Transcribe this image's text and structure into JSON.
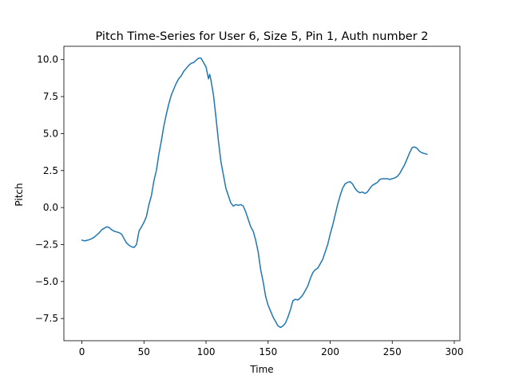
{
  "chart_data": {
    "type": "line",
    "title": "Pitch Time-Series for User 6, Size 5, Pin 1, Auth number 2",
    "xlabel": "Time",
    "ylabel": "Pitch",
    "xlim": [
      -14.5,
      304.5
    ],
    "ylim": [
      -9.0,
      10.9
    ],
    "grid": false,
    "x_ticks": [
      0,
      50,
      100,
      150,
      200,
      250,
      300
    ],
    "x_tick_labels": [
      "0",
      "50",
      "100",
      "150",
      "200",
      "250",
      "300"
    ],
    "y_ticks": [
      -7.5,
      -5.0,
      -2.5,
      0.0,
      2.5,
      5.0,
      7.5,
      10.0
    ],
    "y_tick_labels": [
      "−7.5",
      "−5.0",
      "−2.5",
      "0.0",
      "2.5",
      "5.0",
      "7.5",
      "10.0"
    ],
    "series": [
      {
        "color": "#1f77b4",
        "points": [
          [
            0,
            -2.2
          ],
          [
            2,
            -2.25
          ],
          [
            5,
            -2.2
          ],
          [
            8,
            -2.1
          ],
          [
            10,
            -2.0
          ],
          [
            12,
            -1.85
          ],
          [
            14,
            -1.7
          ],
          [
            16,
            -1.5
          ],
          [
            18,
            -1.4
          ],
          [
            20,
            -1.3
          ],
          [
            22,
            -1.35
          ],
          [
            24,
            -1.5
          ],
          [
            26,
            -1.6
          ],
          [
            28,
            -1.65
          ],
          [
            30,
            -1.7
          ],
          [
            32,
            -1.8
          ],
          [
            34,
            -2.1
          ],
          [
            36,
            -2.4
          ],
          [
            38,
            -2.55
          ],
          [
            40,
            -2.65
          ],
          [
            42,
            -2.7
          ],
          [
            44,
            -2.5
          ],
          [
            46,
            -1.6
          ],
          [
            48,
            -1.3
          ],
          [
            50,
            -1.0
          ],
          [
            52,
            -0.6
          ],
          [
            54,
            0.2
          ],
          [
            56,
            0.8
          ],
          [
            58,
            1.8
          ],
          [
            60,
            2.5
          ],
          [
            62,
            3.6
          ],
          [
            64,
            4.5
          ],
          [
            66,
            5.5
          ],
          [
            68,
            6.3
          ],
          [
            70,
            7.0
          ],
          [
            72,
            7.6
          ],
          [
            74,
            8.0
          ],
          [
            76,
            8.4
          ],
          [
            78,
            8.7
          ],
          [
            80,
            8.9
          ],
          [
            82,
            9.2
          ],
          [
            84,
            9.4
          ],
          [
            86,
            9.6
          ],
          [
            88,
            9.75
          ],
          [
            90,
            9.8
          ],
          [
            92,
            9.95
          ],
          [
            94,
            10.1
          ],
          [
            96,
            10.1
          ],
          [
            98,
            9.8
          ],
          [
            100,
            9.5
          ],
          [
            101,
            9.1
          ],
          [
            102,
            8.7
          ],
          [
            103,
            9.0
          ],
          [
            104,
            8.6
          ],
          [
            106,
            7.6
          ],
          [
            108,
            6.1
          ],
          [
            110,
            4.5
          ],
          [
            112,
            3.1
          ],
          [
            114,
            2.2
          ],
          [
            116,
            1.3
          ],
          [
            118,
            0.8
          ],
          [
            120,
            0.3
          ],
          [
            122,
            0.1
          ],
          [
            124,
            0.2
          ],
          [
            126,
            0.15
          ],
          [
            128,
            0.2
          ],
          [
            130,
            0.1
          ],
          [
            132,
            -0.3
          ],
          [
            134,
            -0.8
          ],
          [
            136,
            -1.3
          ],
          [
            138,
            -1.6
          ],
          [
            140,
            -2.2
          ],
          [
            142,
            -3.0
          ],
          [
            144,
            -4.2
          ],
          [
            146,
            -5.0
          ],
          [
            148,
            -6.0
          ],
          [
            150,
            -6.6
          ],
          [
            152,
            -7.0
          ],
          [
            154,
            -7.4
          ],
          [
            156,
            -7.7
          ],
          [
            158,
            -8.0
          ],
          [
            160,
            -8.1
          ],
          [
            162,
            -8.0
          ],
          [
            164,
            -7.8
          ],
          [
            166,
            -7.4
          ],
          [
            168,
            -6.9
          ],
          [
            170,
            -6.3
          ],
          [
            172,
            -6.2
          ],
          [
            174,
            -6.25
          ],
          [
            176,
            -6.1
          ],
          [
            178,
            -5.9
          ],
          [
            180,
            -5.6
          ],
          [
            182,
            -5.3
          ],
          [
            184,
            -4.8
          ],
          [
            186,
            -4.4
          ],
          [
            188,
            -4.2
          ],
          [
            190,
            -4.1
          ],
          [
            192,
            -3.8
          ],
          [
            194,
            -3.5
          ],
          [
            196,
            -3.0
          ],
          [
            198,
            -2.5
          ],
          [
            200,
            -1.8
          ],
          [
            202,
            -1.2
          ],
          [
            204,
            -0.5
          ],
          [
            206,
            0.2
          ],
          [
            208,
            0.8
          ],
          [
            210,
            1.3
          ],
          [
            212,
            1.6
          ],
          [
            214,
            1.7
          ],
          [
            216,
            1.75
          ],
          [
            218,
            1.6
          ],
          [
            220,
            1.3
          ],
          [
            222,
            1.1
          ],
          [
            224,
            1.0
          ],
          [
            226,
            1.05
          ],
          [
            228,
            0.95
          ],
          [
            230,
            1.05
          ],
          [
            232,
            1.3
          ],
          [
            234,
            1.5
          ],
          [
            236,
            1.6
          ],
          [
            238,
            1.7
          ],
          [
            240,
            1.9
          ],
          [
            242,
            1.95
          ],
          [
            244,
            1.95
          ],
          [
            246,
            1.95
          ],
          [
            248,
            1.9
          ],
          [
            250,
            1.95
          ],
          [
            252,
            2.0
          ],
          [
            254,
            2.1
          ],
          [
            256,
            2.3
          ],
          [
            258,
            2.6
          ],
          [
            260,
            2.9
          ],
          [
            262,
            3.3
          ],
          [
            264,
            3.7
          ],
          [
            266,
            4.05
          ],
          [
            268,
            4.1
          ],
          [
            270,
            4.0
          ],
          [
            272,
            3.8
          ],
          [
            274,
            3.7
          ],
          [
            276,
            3.65
          ],
          [
            278,
            3.6
          ]
        ]
      }
    ]
  }
}
